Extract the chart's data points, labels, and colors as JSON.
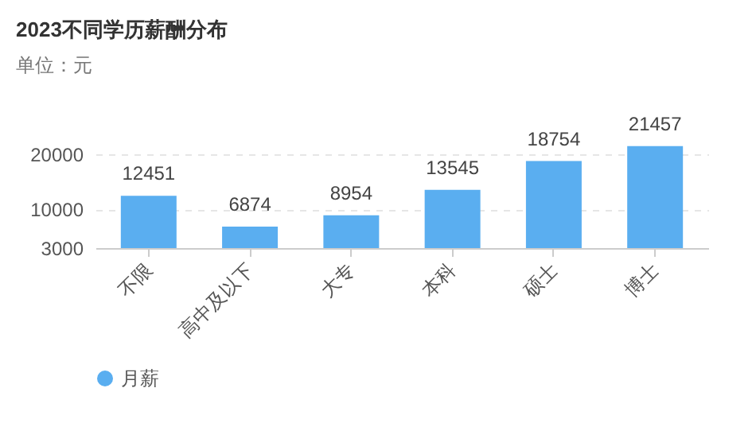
{
  "chart_data": {
    "type": "bar",
    "title": "2023不同学历薪酬分布",
    "subtitle": "单位：元",
    "categories": [
      "不限",
      "高中及以下",
      "大专",
      "本科",
      "硕士",
      "博士"
    ],
    "series": [
      {
        "name": "月薪",
        "color": "#5aaef0",
        "values": [
          12451,
          6874,
          8954,
          13545,
          18754,
          21457
        ]
      }
    ],
    "ylim": [
      3000,
      22000
    ],
    "yticks": [
      3000,
      10000,
      20000
    ],
    "grid": "y",
    "legend": "bottom",
    "data_labels": true
  }
}
